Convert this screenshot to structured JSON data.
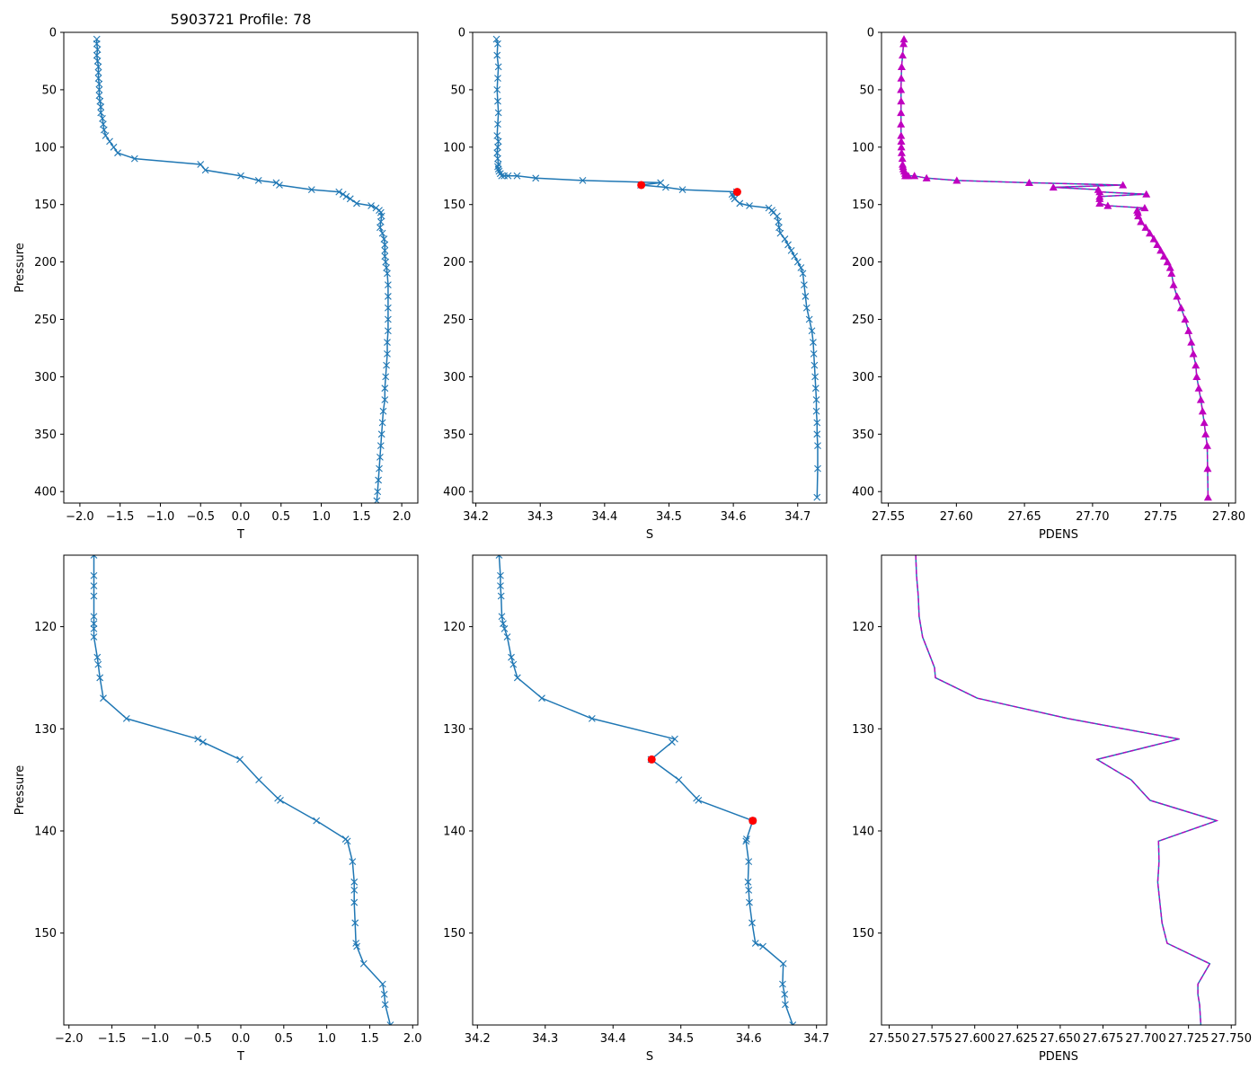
{
  "figure": {
    "suptitle": "5903721 Profile: 78",
    "colors": {
      "line": "#1f77b4",
      "marker_red": "#ff0000",
      "magenta": "#bf00bf",
      "axis": "#000000"
    }
  },
  "chart_data": [
    {
      "id": "temp-full",
      "type": "line",
      "title": "5903721 Profile: 78",
      "xlabel": "T",
      "ylabel": "Pressure",
      "xlim": [
        -2.2,
        2.2
      ],
      "ylim": [
        410,
        0
      ],
      "xticks": [
        -2.0,
        -1.5,
        -1.0,
        -0.5,
        0.0,
        0.5,
        1.0,
        1.5,
        2.0
      ],
      "xtick_labels": [
        "−2.0",
        "−1.5",
        "−1.0",
        "−0.5",
        "0.0",
        "0.5",
        "1.0",
        "1.5",
        "2.0"
      ],
      "yticks": [
        0,
        50,
        100,
        150,
        200,
        250,
        300,
        350,
        400
      ],
      "ytick_labels": [
        "0",
        "50",
        "100",
        "150",
        "200",
        "250",
        "300",
        "350",
        "400"
      ],
      "marker": "x",
      "series": [
        {
          "name": "T",
          "x": [
            -1.79,
            -1.79,
            -1.78,
            -1.79,
            -1.78,
            -1.77,
            -1.77,
            -1.77,
            -1.76,
            -1.76,
            -1.76,
            -1.75,
            -1.74,
            -1.74,
            -1.72,
            -1.71,
            -1.7,
            -1.68,
            -1.63,
            -1.58,
            -1.53,
            -1.32,
            -0.5,
            -0.44,
            0,
            0.22,
            0.44,
            0.48,
            0.88,
            1.22,
            1.27,
            1.31,
            1.36,
            1.44,
            1.62,
            1.68,
            1.72,
            1.74,
            1.75,
            1.74,
            1.73,
            1.76,
            1.78,
            1.79,
            1.79,
            1.79,
            1.8,
            1.81,
            1.82,
            1.83,
            1.83,
            1.83,
            1.83,
            1.83,
            1.82,
            1.82,
            1.81,
            1.8,
            1.79,
            1.79,
            1.77,
            1.76,
            1.75,
            1.74,
            1.73,
            1.72,
            1.71,
            1.7,
            1.69
          ],
          "y": [
            6,
            10,
            15,
            20,
            25,
            30,
            35,
            40,
            45,
            50,
            55,
            60,
            65,
            70,
            75,
            80,
            85,
            90,
            95,
            100,
            105,
            110,
            115,
            120,
            125,
            129,
            131,
            133,
            137,
            139,
            141,
            143,
            145,
            149,
            151,
            153,
            155,
            157,
            160,
            165,
            170,
            175,
            180,
            185,
            190,
            195,
            200,
            205,
            210,
            220,
            230,
            240,
            250,
            260,
            270,
            280,
            290,
            300,
            310,
            320,
            330,
            340,
            350,
            360,
            370,
            380,
            390,
            400,
            408
          ]
        }
      ]
    },
    {
      "id": "sal-full",
      "type": "line",
      "xlabel": "S",
      "ylabel": "",
      "xlim": [
        34.195,
        34.745
      ],
      "ylim": [
        410,
        0
      ],
      "xticks": [
        34.2,
        34.3,
        34.4,
        34.5,
        34.6,
        34.7
      ],
      "xtick_labels": [
        "34.2",
        "34.3",
        "34.4",
        "34.5",
        "34.6",
        "34.7"
      ],
      "yticks": [
        0,
        50,
        100,
        150,
        200,
        250,
        300,
        350,
        400
      ],
      "ytick_labels": [
        "0",
        "50",
        "100",
        "150",
        "200",
        "250",
        "300",
        "350",
        "400"
      ],
      "marker": "x",
      "series": [
        {
          "name": "S",
          "x": [
            34.232,
            34.234,
            34.233,
            34.235,
            34.234,
            34.233,
            34.234,
            34.235,
            34.234,
            34.233,
            34.235,
            34.234,
            34.233,
            34.234,
            34.235,
            34.234,
            34.235,
            34.236,
            34.238,
            34.24,
            34.244,
            34.25,
            34.264,
            34.293,
            34.366,
            34.487,
            34.456,
            34.495,
            34.521,
            34.605,
            34.598,
            34.6,
            34.602,
            34.61,
            34.625,
            34.655,
            34.66,
            34.662,
            34.668,
            34.67,
            34.671,
            34.673,
            34.68,
            34.685,
            34.69,
            34.695,
            34.7,
            34.705,
            34.708,
            34.71,
            34.712,
            34.714,
            34.718,
            34.722,
            34.724,
            34.725,
            34.726,
            34.727,
            34.728,
            34.729,
            34.729,
            34.73,
            34.73,
            34.731,
            34.731,
            34.73
          ],
          "y": [
            6,
            10,
            20,
            30,
            40,
            50,
            60,
            70,
            80,
            90,
            95,
            100,
            105,
            110,
            115,
            117,
            119,
            121,
            123,
            125,
            125,
            125,
            125,
            127,
            129,
            131,
            133,
            135,
            137,
            139,
            141,
            143,
            145,
            149,
            151,
            153,
            155,
            157,
            160,
            165,
            170,
            175,
            180,
            185,
            190,
            195,
            200,
            205,
            210,
            220,
            230,
            240,
            250,
            260,
            270,
            280,
            290,
            300,
            310,
            320,
            330,
            340,
            350,
            360,
            380,
            405
          ]
        }
      ],
      "highlights": [
        {
          "name": "highlight",
          "x": [
            34.457,
            34.606
          ],
          "y": [
            133,
            139
          ]
        }
      ]
    },
    {
      "id": "pdens-full",
      "type": "line",
      "xlabel": "PDENS",
      "ylabel": "",
      "xlim": [
        27.545,
        27.805
      ],
      "ylim": [
        410,
        0
      ],
      "xticks": [
        27.55,
        27.6,
        27.65,
        27.7,
        27.75,
        27.8
      ],
      "xtick_labels": [
        "27.55",
        "27.60",
        "27.65",
        "27.70",
        "27.75",
        "27.80"
      ],
      "yticks": [
        0,
        50,
        100,
        150,
        200,
        250,
        300,
        350,
        400
      ],
      "ytick_labels": [
        "0",
        "50",
        "100",
        "150",
        "200",
        "250",
        "300",
        "350",
        "400"
      ],
      "marker": "triangle",
      "series": [
        {
          "name": "PDENS",
          "x": [
            27.5615,
            27.5612,
            27.5605,
            27.5598,
            27.5595,
            27.5593,
            27.5594,
            27.5593,
            27.5593,
            27.5594,
            27.5595,
            27.5596,
            27.5598,
            27.5603,
            27.5605,
            27.5608,
            27.5611,
            27.5617,
            27.5624,
            27.5625,
            27.5637,
            27.5647,
            27.5692,
            27.5781,
            27.6003,
            27.6535,
            27.7223,
            27.6712,
            27.7042,
            27.7052,
            27.7395,
            27.7052,
            27.7052,
            27.7052,
            27.7112,
            27.7383,
            27.7328,
            27.7333,
            27.7335,
            27.7355,
            27.739,
            27.742,
            27.745,
            27.7475,
            27.75,
            27.7525,
            27.755,
            27.757,
            27.758,
            27.7595,
            27.762,
            27.765,
            27.768,
            27.7705,
            27.7725,
            27.774,
            27.7758,
            27.7765,
            27.778,
            27.7795,
            27.7808,
            27.782,
            27.783,
            27.7842,
            27.7845,
            27.7848
          ],
          "y": [
            6,
            10,
            20,
            30,
            40,
            50,
            60,
            70,
            80,
            90,
            95,
            100,
            105,
            110,
            115,
            117,
            119,
            121,
            123,
            125,
            125,
            125,
            125,
            127,
            129,
            131,
            133,
            135,
            137,
            139,
            141,
            143,
            145,
            149,
            151,
            153,
            155,
            157,
            160,
            165,
            170,
            175,
            180,
            185,
            190,
            195,
            200,
            205,
            210,
            220,
            230,
            240,
            250,
            260,
            270,
            280,
            290,
            300,
            310,
            320,
            330,
            340,
            350,
            360,
            380,
            405
          ]
        }
      ]
    },
    {
      "id": "temp-zoom",
      "type": "line",
      "xlabel": "T",
      "ylabel": "Pressure",
      "xlim": [
        -2.06,
        2.06
      ],
      "ylim": [
        159,
        113
      ],
      "xticks": [
        -2.0,
        -1.5,
        -1.0,
        -0.5,
        0.0,
        0.5,
        1.0,
        1.5,
        2.0
      ],
      "xtick_labels": [
        "−2.0",
        "−1.5",
        "−1.0",
        "−0.5",
        "0.0",
        "0.5",
        "1.0",
        "1.5",
        "2.0"
      ],
      "yticks": [
        120,
        130,
        140,
        150
      ],
      "ytick_labels": [
        "120",
        "130",
        "140",
        "150"
      ],
      "marker": "x",
      "series": [
        {
          "name": "T",
          "x": [
            -1.71,
            -1.71,
            -1.71,
            -1.71,
            -1.71,
            -1.71,
            -1.71,
            -1.71,
            -1.67,
            -1.66,
            -1.64,
            -1.6,
            -1.33,
            -0.5,
            -0.44,
            -0.01,
            0.21,
            0.43,
            0.46,
            0.88,
            1.22,
            1.24,
            1.3,
            1.32,
            1.32,
            1.32,
            1.33,
            1.34,
            1.35,
            1.43,
            1.65,
            1.67,
            1.68,
            1.74
          ],
          "y": [
            113,
            115,
            116,
            117,
            119,
            119.7,
            120.2,
            121,
            123,
            123.7,
            125,
            127,
            129,
            131,
            131.3,
            133,
            135,
            136.8,
            137,
            139,
            140.8,
            141,
            143,
            145,
            145.8,
            147,
            149,
            151,
            151.3,
            153,
            155,
            156,
            157,
            159
          ]
        }
      ]
    },
    {
      "id": "sal-zoom",
      "type": "line",
      "xlabel": "S",
      "ylabel": "",
      "xlim": [
        34.193,
        34.715
      ],
      "ylim": [
        159,
        113
      ],
      "xticks": [
        34.2,
        34.3,
        34.4,
        34.5,
        34.6,
        34.7
      ],
      "xtick_labels": [
        "34.2",
        "34.3",
        "34.4",
        "34.5",
        "34.6",
        "34.7"
      ],
      "yticks": [
        120,
        130,
        140,
        150
      ],
      "ytick_labels": [
        "120",
        "130",
        "140",
        "150"
      ],
      "marker": "x",
      "series": [
        {
          "name": "S",
          "x": [
            34.232,
            34.234,
            34.234,
            34.235,
            34.236,
            34.238,
            34.24,
            34.244,
            34.25,
            34.253,
            34.259,
            34.295,
            34.369,
            34.491,
            34.487,
            34.456,
            34.497,
            34.523,
            34.526,
            34.606,
            34.597,
            34.596,
            34.6,
            34.599,
            34.6,
            34.601,
            34.605,
            34.61,
            34.621,
            34.651,
            34.65,
            34.653,
            34.654,
            34.665
          ],
          "y": [
            113,
            115,
            116,
            117,
            119,
            119.7,
            120.2,
            121,
            123,
            123.7,
            125,
            127,
            129,
            131,
            131.3,
            133,
            135,
            136.8,
            137,
            139,
            140.8,
            141,
            143,
            145,
            145.8,
            147,
            149,
            151,
            151.3,
            153,
            155,
            156,
            157,
            159
          ]
        }
      ],
      "highlights": [
        {
          "name": "highlight",
          "x": [
            34.457,
            34.606
          ],
          "y": [
            133,
            139
          ]
        }
      ]
    },
    {
      "id": "pdens-zoom",
      "type": "line",
      "xlabel": "PDENS",
      "ylabel": "",
      "xlim": [
        27.5455,
        27.7525
      ],
      "ylim": [
        159,
        113
      ],
      "xticks": [
        27.55,
        27.575,
        27.6,
        27.625,
        27.65,
        27.675,
        27.7,
        27.725,
        27.75
      ],
      "xtick_labels": [
        "27.550",
        "27.575",
        "27.600",
        "27.625",
        "27.650",
        "27.675",
        "27.700",
        "27.725",
        "27.750"
      ],
      "yticks": [
        120,
        130,
        140,
        150
      ],
      "ytick_labels": [
        "120",
        "130",
        "140",
        "150"
      ],
      "marker": "none",
      "series": [
        {
          "name": "PDENS",
          "x": [
            27.5655,
            27.566,
            27.567,
            27.5675,
            27.5695,
            27.5742,
            27.5765,
            27.577,
            27.6015,
            27.6545,
            27.7195,
            27.6715,
            27.6915,
            27.7025,
            27.7415,
            27.7075,
            27.7078,
            27.707,
            27.7095,
            27.7125,
            27.7375,
            27.7305,
            27.7305,
            27.7315,
            27.7322
          ],
          "y": [
            113,
            115,
            117,
            119,
            121,
            123,
            124,
            125,
            127,
            129,
            131,
            133,
            135,
            137,
            139,
            141,
            143,
            145,
            149,
            151,
            153,
            155,
            156,
            157,
            159
          ]
        }
      ]
    }
  ]
}
